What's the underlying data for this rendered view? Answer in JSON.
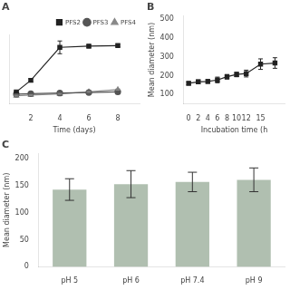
{
  "chart_data": [
    {
      "type": "line",
      "title": "A",
      "xlabel": "Time (days)",
      "x": [
        1,
        2,
        4,
        6,
        8
      ],
      "series": [
        {
          "name": "PFS2",
          "color": "#222222",
          "marker": "square",
          "line_style": "solid",
          "values": [
            105,
            205,
            490,
            500,
            505
          ],
          "yerr": [
            5,
            15,
            55,
            10,
            10
          ]
        },
        {
          "name": "PFS3",
          "color": "#555555",
          "marker": "circle",
          "line_style": "solid",
          "values": [
            85,
            90,
            95,
            100,
            105
          ],
          "yerr": [
            4,
            4,
            4,
            4,
            4
          ]
        },
        {
          "name": "PFS4",
          "color": "#888888",
          "marker": "triangle",
          "line_style": "solid",
          "values": [
            72,
            78,
            88,
            105,
            125
          ],
          "yerr": [
            4,
            4,
            4,
            5,
            5
          ]
        }
      ],
      "xlim": [
        0.5,
        9.5
      ],
      "xticks": [
        2,
        4,
        6,
        8
      ],
      "ylim": [
        0,
        600
      ],
      "tick_labels": "x",
      "legend": "upper right",
      "grid": false
    },
    {
      "type": "line",
      "title": "B",
      "xlabel": "Incubation time (h",
      "ylabel": "Mean diameter (nm)",
      "x": [
        0,
        2,
        4,
        6,
        8,
        10,
        12,
        15,
        18
      ],
      "values": [
        160,
        168,
        170,
        178,
        195,
        207,
        212,
        262,
        268
      ],
      "yerr": [
        8,
        10,
        10,
        15,
        12,
        12,
        18,
        28,
        28
      ],
      "color": "#222222",
      "marker": "square",
      "line_style": "solid",
      "xlim": [
        -1,
        20
      ],
      "xticks": [
        0,
        2,
        4,
        6,
        8,
        10,
        12,
        15
      ],
      "ylim": [
        50,
        520
      ],
      "yticks": [
        100,
        200,
        300,
        400,
        500
      ],
      "grid": false
    },
    {
      "type": "bar",
      "title": "C",
      "ylabel": "Mean diameter (nm)",
      "categories": [
        "pH 5",
        "pH 6",
        "pH 7.4",
        "pH 9"
      ],
      "values": [
        143,
        153,
        157,
        161
      ],
      "yerr": [
        20,
        25,
        18,
        22
      ],
      "color": "#b0bfb0",
      "ylim": [
        0,
        210
      ],
      "yticks": [
        0,
        50,
        100,
        150,
        200
      ],
      "grid": false
    }
  ]
}
